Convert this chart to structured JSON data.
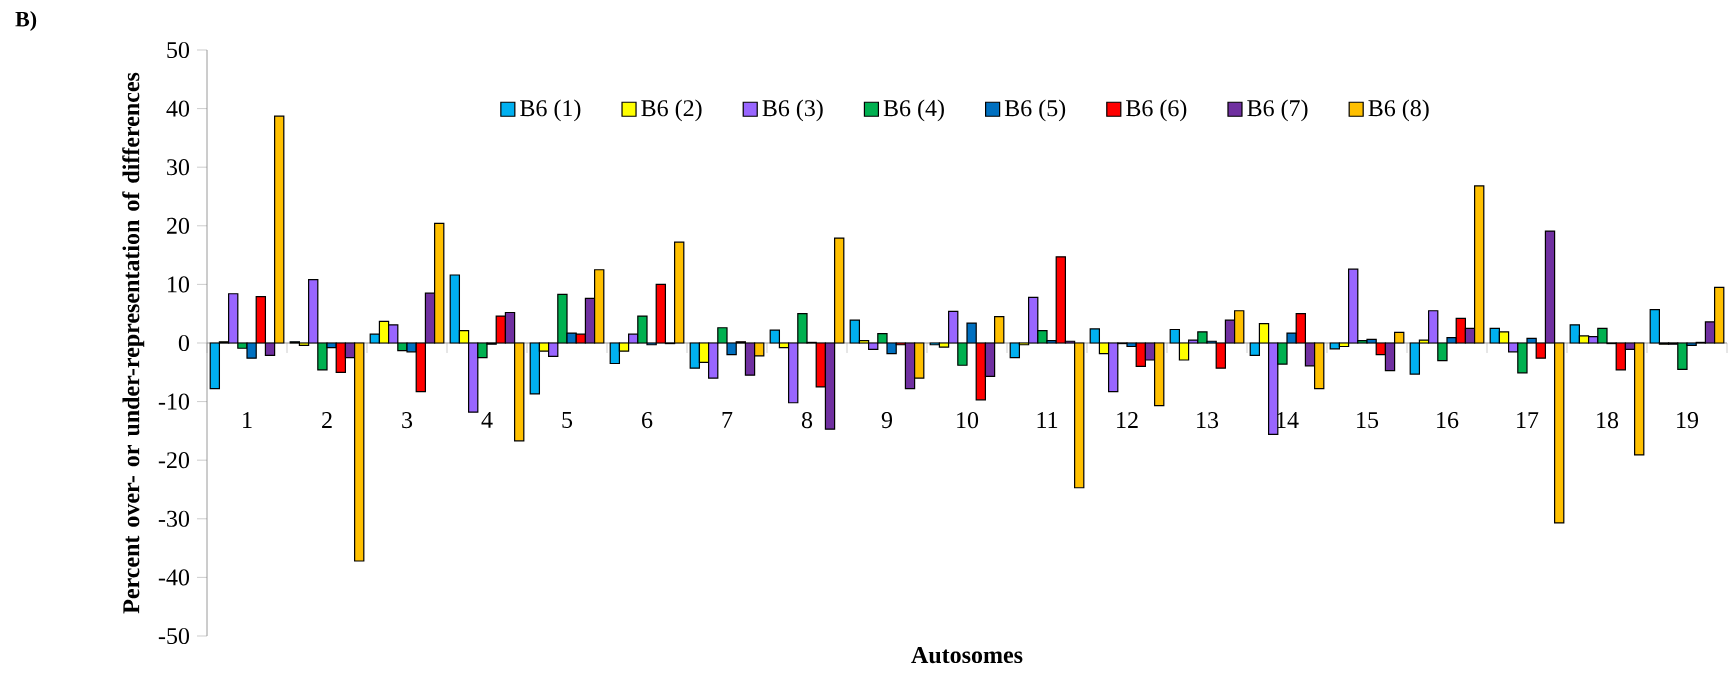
{
  "chart_data": {
    "type": "bar",
    "title": "B)",
    "xlabel": "Autosomes",
    "ylabel": "Percent over- or under-representation of differences",
    "categories": [
      "1",
      "2",
      "3",
      "4",
      "5",
      "6",
      "7",
      "8",
      "9",
      "10",
      "11",
      "12",
      "13",
      "14",
      "15",
      "16",
      "17",
      "18",
      "19"
    ],
    "series": [
      {
        "name": "B6 (1)",
        "color": "#00b0f0",
        "values": [
          -7.8,
          0.2,
          1.5,
          11.6,
          -8.7,
          -3.5,
          -4.3,
          2.2,
          3.9,
          -0.3,
          -2.5,
          2.4,
          2.3,
          -2.1,
          -1.0,
          -5.3,
          2.5,
          3.1,
          5.7
        ]
      },
      {
        "name": "B6 (2)",
        "color": "#ffff00",
        "values": [
          0.2,
          -0.4,
          3.7,
          2.1,
          -1.4,
          -1.4,
          -3.3,
          -0.8,
          0.4,
          -0.7,
          -0.3,
          -1.8,
          -2.9,
          3.3,
          -0.6,
          0.5,
          1.9,
          1.2,
          -0.2
        ]
      },
      {
        "name": "B6 (3)",
        "color": "#9966ff",
        "values": [
          8.4,
          10.8,
          3.1,
          -11.8,
          -2.3,
          1.5,
          -6.0,
          -10.2,
          -1.1,
          5.4,
          7.8,
          -8.3,
          0.5,
          -15.6,
          12.6,
          5.5,
          -1.5,
          1.1,
          -0.2
        ]
      },
      {
        "name": "B6 (4)",
        "color": "#00b050",
        "values": [
          -0.9,
          -4.6,
          -1.3,
          -2.5,
          8.3,
          4.6,
          2.6,
          5.0,
          1.6,
          -3.8,
          2.1,
          -0.1,
          1.9,
          -3.6,
          0.4,
          -3.0,
          -5.1,
          2.5,
          -4.5
        ]
      },
      {
        "name": "B6 (5)",
        "color": "#0070c0",
        "values": [
          -2.6,
          -0.8,
          -1.5,
          -0.2,
          1.7,
          -0.3,
          -2.0,
          0.1,
          -1.8,
          3.4,
          0.4,
          -0.6,
          0.3,
          1.7,
          0.6,
          0.9,
          0.8,
          -0.1,
          -0.4
        ]
      },
      {
        "name": "B6 (6)",
        "color": "#ff0000",
        "values": [
          7.9,
          -5.0,
          -8.3,
          4.6,
          1.5,
          10.0,
          0.2,
          -7.5,
          -0.3,
          -9.7,
          14.7,
          -4.0,
          -4.3,
          5.0,
          -2.0,
          4.2,
          -2.6,
          -4.6,
          0.1
        ]
      },
      {
        "name": "B6 (7)",
        "color": "#7030a0",
        "values": [
          -2.1,
          -2.5,
          8.5,
          5.2,
          7.6,
          -0.1,
          -5.5,
          -14.7,
          -7.8,
          -5.7,
          0.3,
          -2.9,
          3.9,
          -3.9,
          -4.7,
          2.5,
          19.1,
          -1.1,
          3.6
        ]
      },
      {
        "name": "B6 (8)",
        "color": "#ffc000",
        "values": [
          38.7,
          -37.2,
          20.4,
          -16.7,
          12.5,
          17.2,
          -2.2,
          17.9,
          -6.0,
          4.5,
          -24.7,
          -10.7,
          5.5,
          -7.8,
          1.8,
          26.8,
          -30.7,
          -19.1,
          9.5
        ]
      }
    ],
    "ylim": [
      -50,
      50
    ],
    "yticks": [
      -50,
      -40,
      -30,
      -20,
      -10,
      0,
      10,
      20,
      30,
      40,
      50
    ],
    "legend": "top"
  }
}
